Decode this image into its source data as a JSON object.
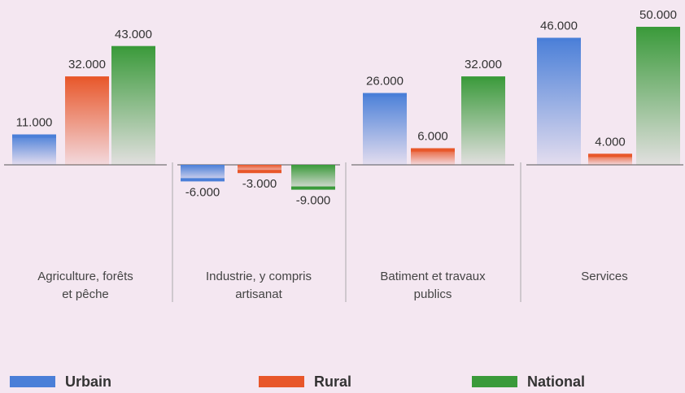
{
  "chart_data": {
    "type": "bar",
    "categories": [
      "Agriculture, forêts\net pêche",
      "Industrie, y compris\nartisanat",
      "Batiment et travaux\npublics",
      "Services"
    ],
    "series": [
      {
        "name": "Urbain",
        "color": "#4a7fd8",
        "values": [
          11000,
          -6000,
          26000,
          46000
        ],
        "value_labels": [
          "11.000",
          "-6.000",
          "26.000",
          "46.000"
        ]
      },
      {
        "name": "Rural",
        "color": "#e8572a",
        "values": [
          32000,
          -3000,
          6000,
          4000
        ],
        "value_labels": [
          "32.000",
          "-3.000",
          "6.000",
          "4.000"
        ]
      },
      {
        "name": "National",
        "color": "#3a9a3a",
        "values": [
          43000,
          -9000,
          32000,
          50000
        ],
        "value_labels": [
          "43.000",
          "-9.000",
          "32.000",
          "50.000"
        ]
      }
    ],
    "ylim": [
      -20000,
      50000
    ]
  }
}
